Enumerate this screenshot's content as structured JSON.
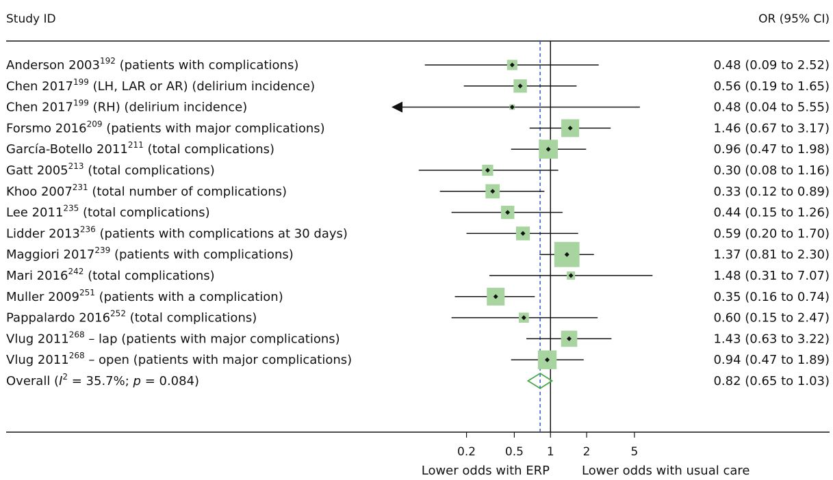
{
  "header": {
    "left": "Study ID",
    "right": "OR (95% CI)"
  },
  "chart_data": {
    "type": "forest",
    "x_scale": "log",
    "x_ticks": [
      {
        "value": 0.2,
        "label": "0.2"
      },
      {
        "value": 0.5,
        "label": "0.5"
      },
      {
        "value": 1,
        "label": "1"
      },
      {
        "value": 2,
        "label": "2"
      },
      {
        "value": 5,
        "label": "5"
      }
    ],
    "xlim": [
      0.0475,
      10.3
    ],
    "xlabel_left": "Lower odds with ERP",
    "xlabel_right": "Lower odds with usual care",
    "null_line": 1,
    "color_box": "#a8d4a0",
    "color_diamond": "#44aa44",
    "color_dashed": "#3355cc",
    "studies": [
      {
        "name": "Anderson 2003",
        "ref": "192",
        "desc": " (patients with complications)",
        "or": 0.48,
        "lo": 0.09,
        "hi": 2.52,
        "ci_text": "0.48 (0.09 to 2.52)",
        "weight": 2.5
      },
      {
        "name": "Chen 2017",
        "ref": "199",
        "desc": " (LH, LAR or AR) (delirium incidence)",
        "or": 0.56,
        "lo": 0.19,
        "hi": 1.65,
        "ci_text": "0.56 (0.19 to 1.65)",
        "weight": 4.2
      },
      {
        "name": "Chen 2017",
        "ref": "199",
        "desc": " (RH) (delirium incidence)",
        "or": 0.48,
        "lo": 0.04,
        "hi": 5.55,
        "ci_text": "0.48 (0.04 to 5.55)",
        "weight": 0.7,
        "arrow_left": true
      },
      {
        "name": "Forsmo 2016",
        "ref": "209",
        "desc": " (patients with major complications)",
        "or": 1.46,
        "lo": 0.67,
        "hi": 3.17,
        "ci_text": "1.46 (0.67 to 3.17)",
        "weight": 7.5
      },
      {
        "name": "García-Botello 2011",
        "ref": "211",
        "desc": " (total complications)",
        "or": 0.96,
        "lo": 0.47,
        "hi": 1.98,
        "ci_text": "0.96 (0.47 to 1.98)",
        "weight": 8.5
      },
      {
        "name": "Gatt 2005",
        "ref": "213",
        "desc": " (total complications)",
        "or": 0.3,
        "lo": 0.08,
        "hi": 1.16,
        "ci_text": "0.30 (0.08 to 1.16)",
        "weight": 2.9
      },
      {
        "name": "Khoo 2007",
        "ref": "231",
        "desc": " (total number of complications)",
        "or": 0.33,
        "lo": 0.12,
        "hi": 0.89,
        "ci_text": "0.33 (0.12 to 0.89)",
        "weight": 4.8
      },
      {
        "name": "Lee 2011",
        "ref": "235",
        "desc": " (total complications)",
        "or": 0.44,
        "lo": 0.15,
        "hi": 1.26,
        "ci_text": "0.44 (0.15 to 1.26)",
        "weight": 4.2
      },
      {
        "name": "Lidder 2013",
        "ref": "236",
        "desc": " (patients with complications at 30 days)",
        "or": 0.59,
        "lo": 0.2,
        "hi": 1.7,
        "ci_text": "0.59 (0.20 to 1.70)",
        "weight": 4.5
      },
      {
        "name": "Maggiori 2017",
        "ref": "239",
        "desc": " (patients with complications)",
        "or": 1.37,
        "lo": 0.81,
        "hi": 2.3,
        "ci_text": "1.37 (0.81 to 2.30)",
        "weight": 15.0
      },
      {
        "name": "Mari 2016",
        "ref": "242",
        "desc": " (total complications)",
        "or": 1.48,
        "lo": 0.31,
        "hi": 7.07,
        "ci_text": "1.48 (0.31 to 7.07)",
        "weight": 1.6
      },
      {
        "name": "Muller 2009",
        "ref": "251",
        "desc": " (patients with a complication)",
        "or": 0.35,
        "lo": 0.16,
        "hi": 0.74,
        "ci_text": "0.35 (0.16 to 0.74)",
        "weight": 7.5
      },
      {
        "name": "Pappalardo 2016",
        "ref": "252",
        "desc": " (total complications)",
        "or": 0.6,
        "lo": 0.15,
        "hi": 2.47,
        "ci_text": "0.60 (0.15 to 2.47)",
        "weight": 2.4
      },
      {
        "name": "Vlug 2011",
        "ref": "268",
        "desc": " – lap (patients with major complications)",
        "or": 1.43,
        "lo": 0.63,
        "hi": 3.22,
        "ci_text": "1.43 (0.63 to 3.22)",
        "weight": 6.2
      },
      {
        "name": "Vlug 2011",
        "ref": "268",
        "desc": " – open (patients with major complications)",
        "or": 0.94,
        "lo": 0.47,
        "hi": 1.89,
        "ci_text": "0.94 (0.47 to 1.89)",
        "weight": 8.3
      }
    ],
    "overall": {
      "label_prefix": "Overall (",
      "label_i": "I",
      "label_sup": "2",
      "label_eq": " = 35.7%; ",
      "label_p": "p",
      "label_end": " = 0.084)",
      "or": 0.82,
      "lo": 0.65,
      "hi": 1.03,
      "ci_text": "0.82 (0.65 to 1.03)"
    }
  }
}
